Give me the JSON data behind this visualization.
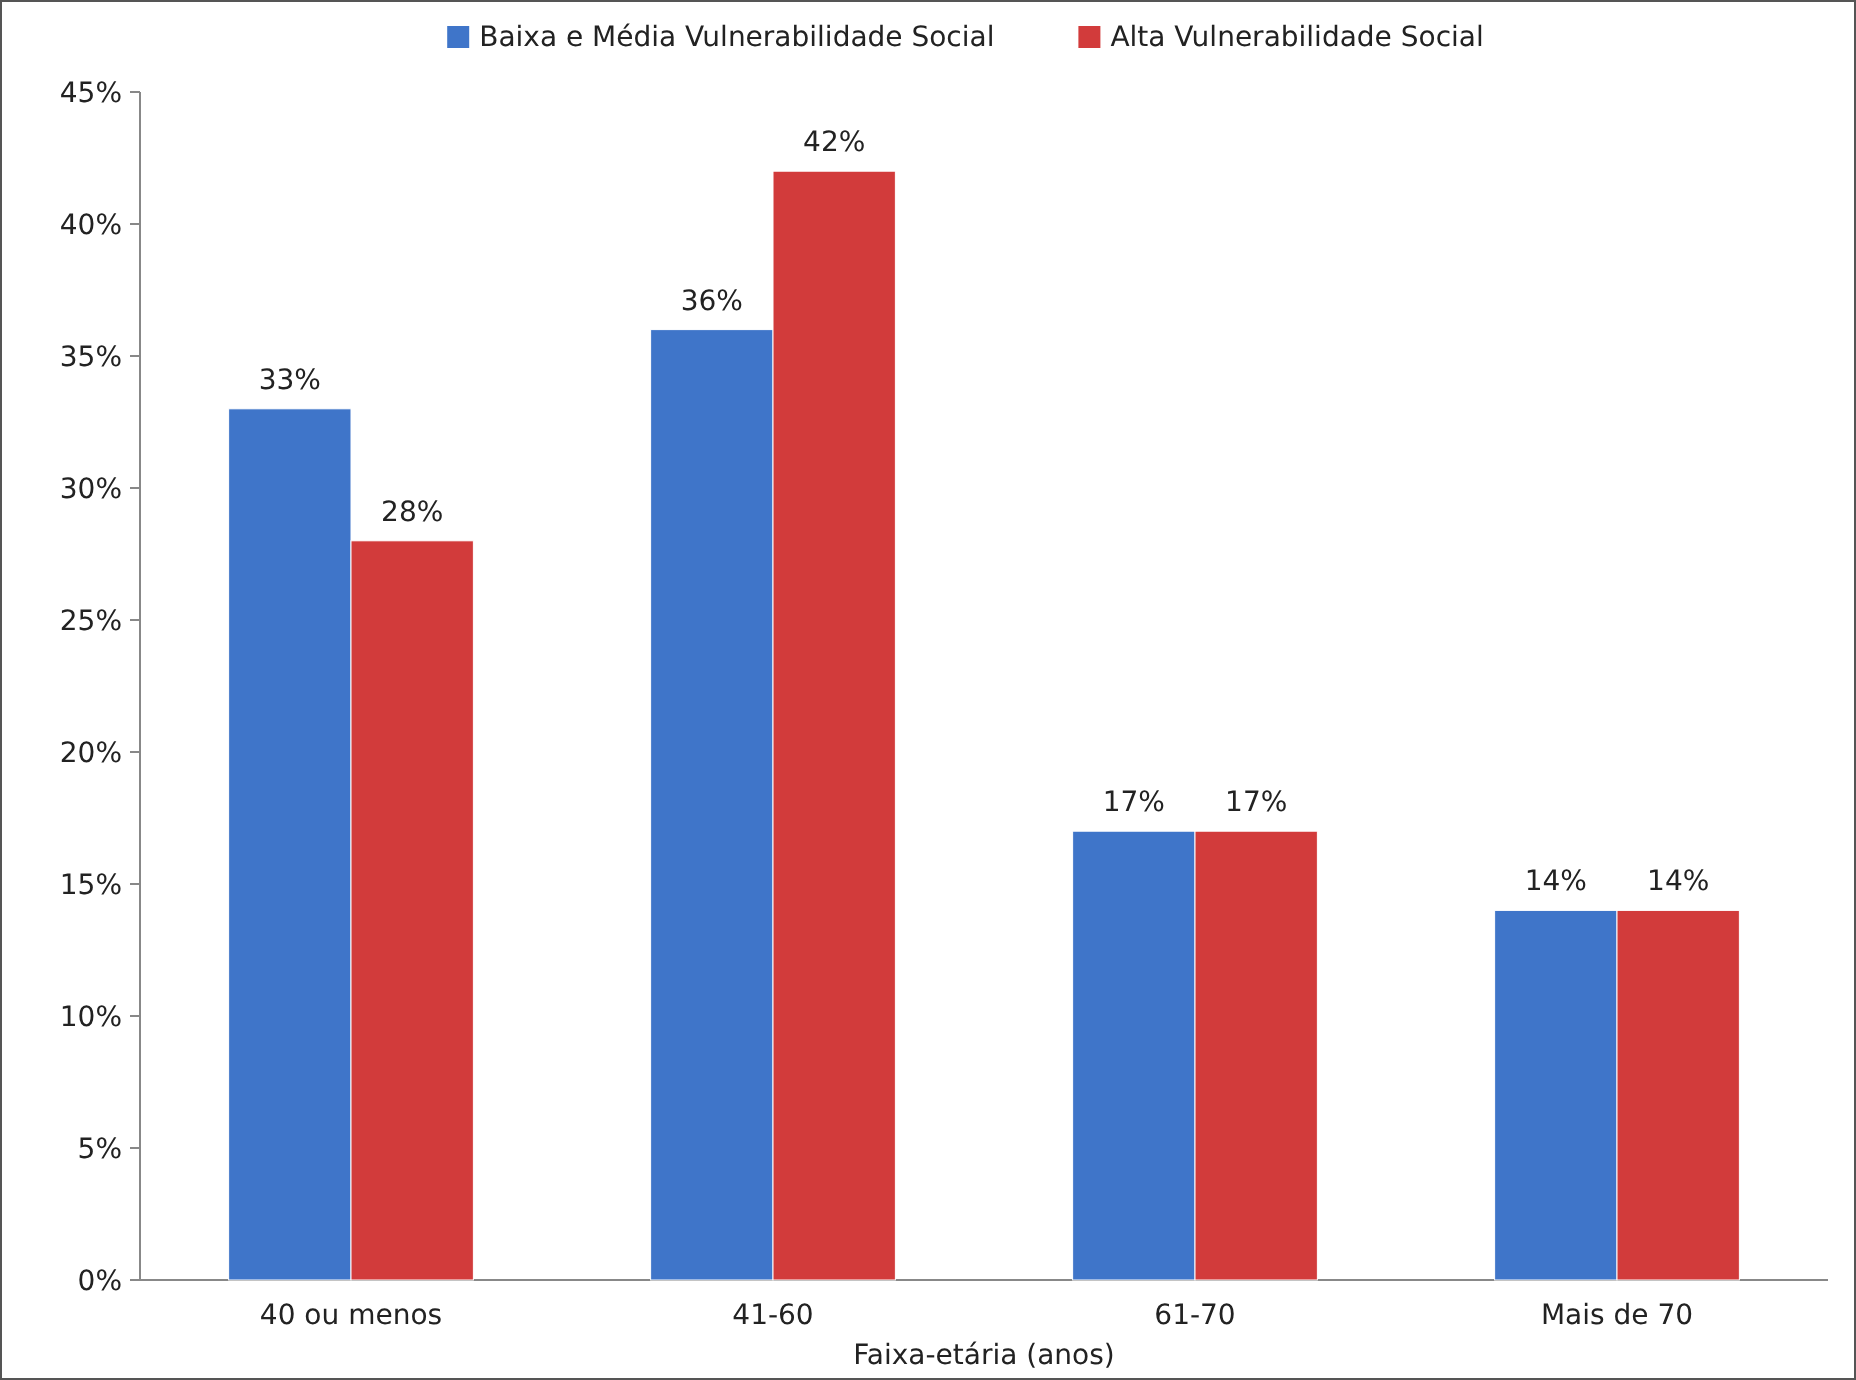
{
  "chart_data": {
    "type": "bar",
    "xlabel": "Faixa-etária (anos)",
    "categories": [
      "40 ou menos",
      "41-60",
      "61-70",
      "Mais de 70"
    ],
    "series": [
      {
        "name": "Baixa e Média Vulnerabilidade Social",
        "color": "#3f75c9",
        "values": [
          33,
          36,
          17,
          14
        ],
        "value_labels": [
          "33%",
          "36%",
          "17%",
          "14%"
        ]
      },
      {
        "name": "Alta Vulnerabilidade Social",
        "color": "#d23b3b",
        "values": [
          28,
          42,
          17,
          14
        ],
        "value_labels": [
          "28%",
          "42%",
          "17%",
          "14%"
        ]
      }
    ],
    "ylim": [
      0,
      45
    ],
    "yticks": [
      {
        "value": 0,
        "label": "0%"
      },
      {
        "value": 5,
        "label": "5%"
      },
      {
        "value": 10,
        "label": "10%"
      },
      {
        "value": 15,
        "label": "15%"
      },
      {
        "value": 20,
        "label": "20%"
      },
      {
        "value": 25,
        "label": "25%"
      },
      {
        "value": 30,
        "label": "30%"
      },
      {
        "value": 35,
        "label": "35%"
      },
      {
        "value": 40,
        "label": "40%"
      },
      {
        "value": 45,
        "label": "45%"
      }
    ],
    "legend": "top"
  }
}
